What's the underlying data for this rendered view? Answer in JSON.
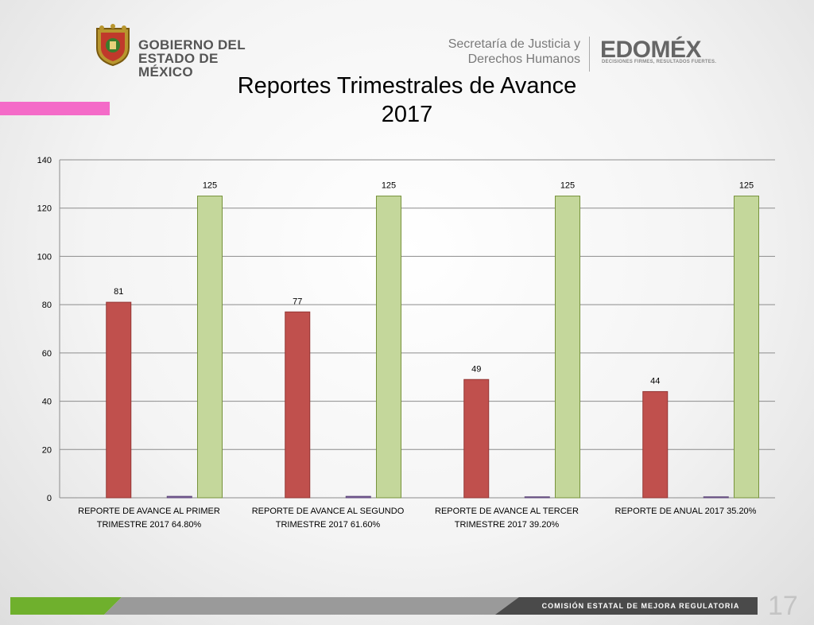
{
  "header": {
    "gob_line1": "GOBIERNO DEL",
    "gob_line2": "ESTADO DE MÉXICO",
    "sec_line1": "Secretaría de Justicia y",
    "sec_line2": "Derechos Humanos",
    "edomex_logo": "EDOMÉX",
    "edomex_tagline": "DECISIONES FIRMES, RESULTADOS FUERTES."
  },
  "slide": {
    "title_line1": "Reportes Trimestrales de Avance",
    "title_line2": "2017",
    "footer_label": "COMISIÓN ESTATAL DE MEJORA REGULATORIA",
    "page_number": "17"
  },
  "colors": {
    "pink_accent": "#f46bc8",
    "series_red": "#c0504d",
    "series_purple": "#8064a2",
    "series_green": "#c4d79b",
    "footer_green": "#6fb02d",
    "footer_gray": "#9a9a9a",
    "footer_dark": "#404040"
  },
  "chart_data": {
    "type": "bar",
    "categories": [
      [
        "REPORTE DE AVANCE AL PRIMER",
        "TRIMESTRE 2017   64.80%"
      ],
      [
        "REPORTE DE AVANCE AL SEGUNDO",
        "TRIMESTRE 2017   61.60%"
      ],
      [
        "REPORTE DE AVANCE AL TERCER",
        "TRIMESTRE 2017   39.20%"
      ],
      [
        "REPORTE DE ANUAL 2017   35.20%"
      ]
    ],
    "series": [
      {
        "color": "#c0504d",
        "values": [
          81,
          77,
          49,
          44
        ],
        "show_labels": true
      },
      {
        "color": "#8064a2",
        "values": [
          0.6,
          0.6,
          0.4,
          0.4
        ],
        "show_labels": false
      },
      {
        "color": "#c4d79b",
        "values": [
          125,
          125,
          125,
          125
        ],
        "show_labels": true
      }
    ],
    "ylim": [
      0,
      140
    ],
    "yticks": [
      0,
      20,
      40,
      60,
      80,
      100,
      120,
      140
    ],
    "grid": true,
    "legend": "none"
  }
}
